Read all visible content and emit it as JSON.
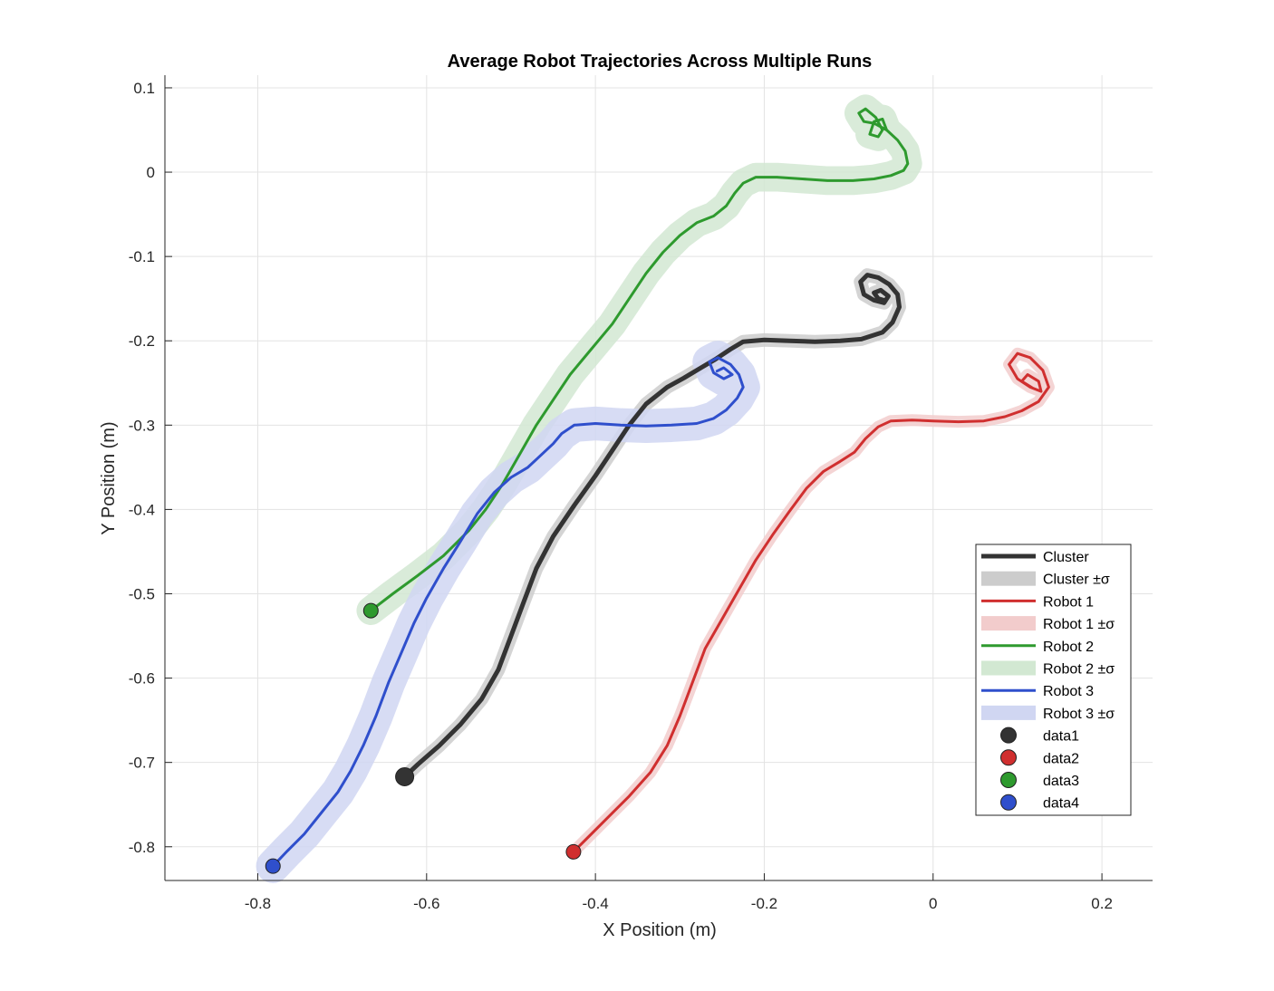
{
  "chart_data": {
    "type": "line",
    "title": "Average Robot Trajectories Across Multiple Runs",
    "xlabel": "X Position (m)",
    "ylabel": "Y Position (m)",
    "xlim": [
      -0.91,
      0.26
    ],
    "ylim": [
      -0.84,
      0.115
    ],
    "xticks": [
      -0.8,
      -0.6,
      -0.4,
      -0.2,
      0,
      0.2
    ],
    "xtick_labels": [
      "-0.8",
      "-0.6",
      "-0.4",
      "-0.2",
      "0",
      "0.2"
    ],
    "yticks": [
      0.1,
      0,
      -0.1,
      -0.2,
      -0.3,
      -0.4,
      -0.5,
      -0.6,
      -0.7,
      -0.8
    ],
    "ytick_labels": [
      "0.1",
      "0",
      "-0.1",
      "-0.2",
      "-0.3",
      "-0.4",
      "-0.5",
      "-0.6",
      "-0.7",
      "-0.8"
    ],
    "grid": true,
    "legend_location": "bottom-right",
    "series": [
      {
        "name": "Cluster",
        "color": "#333333",
        "band_label": "Cluster ±σ",
        "band_color": "#cccccc",
        "width": 5,
        "points": [
          [
            -0.626,
            -0.717
          ],
          [
            -0.61,
            -0.702
          ],
          [
            -0.585,
            -0.68
          ],
          [
            -0.56,
            -0.655
          ],
          [
            -0.535,
            -0.625
          ],
          [
            -0.515,
            -0.59
          ],
          [
            -0.5,
            -0.55
          ],
          [
            -0.485,
            -0.51
          ],
          [
            -0.47,
            -0.47
          ],
          [
            -0.45,
            -0.432
          ],
          [
            -0.425,
            -0.395
          ],
          [
            -0.4,
            -0.36
          ],
          [
            -0.38,
            -0.33
          ],
          [
            -0.36,
            -0.3
          ],
          [
            -0.34,
            -0.275
          ],
          [
            -0.315,
            -0.255
          ],
          [
            -0.295,
            -0.244
          ],
          [
            -0.275,
            -0.232
          ],
          [
            -0.258,
            -0.222
          ],
          [
            -0.24,
            -0.21
          ],
          [
            -0.225,
            -0.201
          ],
          [
            -0.2,
            -0.199
          ],
          [
            -0.17,
            -0.2
          ],
          [
            -0.14,
            -0.201
          ],
          [
            -0.11,
            -0.2
          ],
          [
            -0.085,
            -0.198
          ],
          [
            -0.06,
            -0.19
          ],
          [
            -0.048,
            -0.178
          ],
          [
            -0.04,
            -0.16
          ],
          [
            -0.042,
            -0.145
          ],
          [
            -0.052,
            -0.133
          ],
          [
            -0.065,
            -0.125
          ],
          [
            -0.078,
            -0.122
          ],
          [
            -0.086,
            -0.13
          ],
          [
            -0.082,
            -0.145
          ],
          [
            -0.07,
            -0.152
          ],
          [
            -0.058,
            -0.155
          ],
          [
            -0.053,
            -0.147
          ],
          [
            -0.062,
            -0.14
          ],
          [
            -0.07,
            -0.143
          ],
          [
            -0.065,
            -0.15
          ],
          [
            -0.058,
            -0.152
          ]
        ],
        "band_half_width": 0.008
      },
      {
        "name": "Robot 1",
        "color": "#d02f2f",
        "band_label": "Robot 1 ±σ",
        "band_color": "#f2cccc",
        "width": 3,
        "points": [
          [
            -0.426,
            -0.806
          ],
          [
            -0.41,
            -0.79
          ],
          [
            -0.385,
            -0.765
          ],
          [
            -0.36,
            -0.74
          ],
          [
            -0.335,
            -0.712
          ],
          [
            -0.315,
            -0.68
          ],
          [
            -0.3,
            -0.645
          ],
          [
            -0.285,
            -0.605
          ],
          [
            -0.27,
            -0.565
          ],
          [
            -0.25,
            -0.53
          ],
          [
            -0.23,
            -0.495
          ],
          [
            -0.21,
            -0.46
          ],
          [
            -0.19,
            -0.43
          ],
          [
            -0.17,
            -0.402
          ],
          [
            -0.15,
            -0.375
          ],
          [
            -0.13,
            -0.355
          ],
          [
            -0.11,
            -0.343
          ],
          [
            -0.093,
            -0.332
          ],
          [
            -0.08,
            -0.316
          ],
          [
            -0.065,
            -0.302
          ],
          [
            -0.05,
            -0.295
          ],
          [
            -0.025,
            -0.294
          ],
          [
            0.0,
            -0.295
          ],
          [
            0.03,
            -0.296
          ],
          [
            0.06,
            -0.295
          ],
          [
            0.085,
            -0.29
          ],
          [
            0.105,
            -0.283
          ],
          [
            0.125,
            -0.272
          ],
          [
            0.137,
            -0.255
          ],
          [
            0.13,
            -0.235
          ],
          [
            0.115,
            -0.22
          ],
          [
            0.1,
            -0.215
          ],
          [
            0.09,
            -0.228
          ],
          [
            0.1,
            -0.245
          ],
          [
            0.115,
            -0.255
          ],
          [
            0.128,
            -0.26
          ],
          [
            0.125,
            -0.248
          ],
          [
            0.112,
            -0.24
          ],
          [
            0.105,
            -0.248
          ],
          [
            0.118,
            -0.256
          ]
        ],
        "band_half_width": 0.007
      },
      {
        "name": "Robot 2",
        "color": "#2e9a2e",
        "band_label": "Robot 2 ±σ",
        "band_color": "#d2e8d2",
        "width": 3,
        "points": [
          [
            -0.666,
            -0.52
          ],
          [
            -0.64,
            -0.5
          ],
          [
            -0.61,
            -0.478
          ],
          [
            -0.58,
            -0.455
          ],
          [
            -0.55,
            -0.425
          ],
          [
            -0.53,
            -0.4
          ],
          [
            -0.51,
            -0.37
          ],
          [
            -0.49,
            -0.335
          ],
          [
            -0.47,
            -0.3
          ],
          [
            -0.45,
            -0.27
          ],
          [
            -0.43,
            -0.24
          ],
          [
            -0.405,
            -0.21
          ],
          [
            -0.38,
            -0.18
          ],
          [
            -0.36,
            -0.15
          ],
          [
            -0.34,
            -0.12
          ],
          [
            -0.32,
            -0.095
          ],
          [
            -0.3,
            -0.075
          ],
          [
            -0.28,
            -0.06
          ],
          [
            -0.26,
            -0.052
          ],
          [
            -0.245,
            -0.04
          ],
          [
            -0.235,
            -0.025
          ],
          [
            -0.225,
            -0.013
          ],
          [
            -0.21,
            -0.006
          ],
          [
            -0.185,
            -0.006
          ],
          [
            -0.155,
            -0.008
          ],
          [
            -0.125,
            -0.01
          ],
          [
            -0.095,
            -0.01
          ],
          [
            -0.07,
            -0.008
          ],
          [
            -0.05,
            -0.004
          ],
          [
            -0.035,
            0.002
          ],
          [
            -0.03,
            0.01
          ],
          [
            -0.033,
            0.025
          ],
          [
            -0.042,
            0.038
          ],
          [
            -0.055,
            0.05
          ],
          [
            -0.07,
            0.058
          ],
          [
            -0.082,
            0.06
          ],
          [
            -0.088,
            0.07
          ],
          [
            -0.08,
            0.075
          ],
          [
            -0.068,
            0.065
          ],
          [
            -0.06,
            0.05
          ],
          [
            -0.065,
            0.042
          ],
          [
            -0.075,
            0.045
          ],
          [
            -0.07,
            0.06
          ],
          [
            -0.06,
            0.063
          ],
          [
            -0.055,
            0.05
          ]
        ],
        "band_half_width": 0.017
      },
      {
        "name": "Robot 3",
        "color": "#2f4fcc",
        "band_label": "Robot 3 ±σ",
        "band_color": "#d0d6f2",
        "width": 3,
        "points": [
          [
            -0.782,
            -0.823
          ],
          [
            -0.765,
            -0.805
          ],
          [
            -0.745,
            -0.785
          ],
          [
            -0.725,
            -0.76
          ],
          [
            -0.705,
            -0.735
          ],
          [
            -0.69,
            -0.71
          ],
          [
            -0.675,
            -0.68
          ],
          [
            -0.66,
            -0.645
          ],
          [
            -0.645,
            -0.605
          ],
          [
            -0.63,
            -0.57
          ],
          [
            -0.615,
            -0.535
          ],
          [
            -0.6,
            -0.505
          ],
          [
            -0.58,
            -0.47
          ],
          [
            -0.56,
            -0.438
          ],
          [
            -0.54,
            -0.405
          ],
          [
            -0.52,
            -0.38
          ],
          [
            -0.5,
            -0.362
          ],
          [
            -0.48,
            -0.35
          ],
          [
            -0.465,
            -0.336
          ],
          [
            -0.45,
            -0.322
          ],
          [
            -0.44,
            -0.31
          ],
          [
            -0.425,
            -0.3
          ],
          [
            -0.4,
            -0.298
          ],
          [
            -0.37,
            -0.3
          ],
          [
            -0.34,
            -0.301
          ],
          [
            -0.31,
            -0.3
          ],
          [
            -0.28,
            -0.298
          ],
          [
            -0.26,
            -0.292
          ],
          [
            -0.245,
            -0.282
          ],
          [
            -0.232,
            -0.268
          ],
          [
            -0.225,
            -0.255
          ],
          [
            -0.23,
            -0.24
          ],
          [
            -0.24,
            -0.228
          ],
          [
            -0.255,
            -0.22
          ],
          [
            -0.265,
            -0.225
          ],
          [
            -0.26,
            -0.238
          ],
          [
            -0.248,
            -0.245
          ],
          [
            -0.238,
            -0.24
          ],
          [
            -0.248,
            -0.232
          ],
          [
            -0.256,
            -0.236
          ]
        ],
        "band_half_width": 0.02
      }
    ],
    "markers": [
      {
        "name": "data1",
        "x": -0.626,
        "y": -0.717,
        "color": "#333333",
        "radius": 10
      },
      {
        "name": "data2",
        "x": -0.426,
        "y": -0.806,
        "color": "#d02f2f",
        "radius": 8
      },
      {
        "name": "data3",
        "x": -0.666,
        "y": -0.52,
        "color": "#2e9a2e",
        "radius": 8
      },
      {
        "name": "data4",
        "x": -0.782,
        "y": -0.823,
        "color": "#2f4fcc",
        "radius": 8
      }
    ],
    "legend": [
      {
        "label": "Cluster",
        "kind": "line",
        "color": "#333333",
        "width": 5
      },
      {
        "label": "Cluster ±σ",
        "kind": "band",
        "color": "#cccccc"
      },
      {
        "label": "Robot 1",
        "kind": "line",
        "color": "#d02f2f",
        "width": 3
      },
      {
        "label": "Robot 1 ±σ",
        "kind": "band",
        "color": "#f2cccc"
      },
      {
        "label": "Robot 2",
        "kind": "line",
        "color": "#2e9a2e",
        "width": 3
      },
      {
        "label": "Robot 2 ±σ",
        "kind": "band",
        "color": "#d2e8d2"
      },
      {
        "label": "Robot 3",
        "kind": "line",
        "color": "#2f4fcc",
        "width": 3
      },
      {
        "label": "Robot 3 ±σ",
        "kind": "band",
        "color": "#d0d6f2"
      },
      {
        "label": "data1",
        "kind": "marker",
        "color": "#333333"
      },
      {
        "label": "data2",
        "kind": "marker",
        "color": "#d02f2f"
      },
      {
        "label": "data3",
        "kind": "marker",
        "color": "#2e9a2e"
      },
      {
        "label": "data4",
        "kind": "marker",
        "color": "#2f4fcc"
      }
    ]
  }
}
